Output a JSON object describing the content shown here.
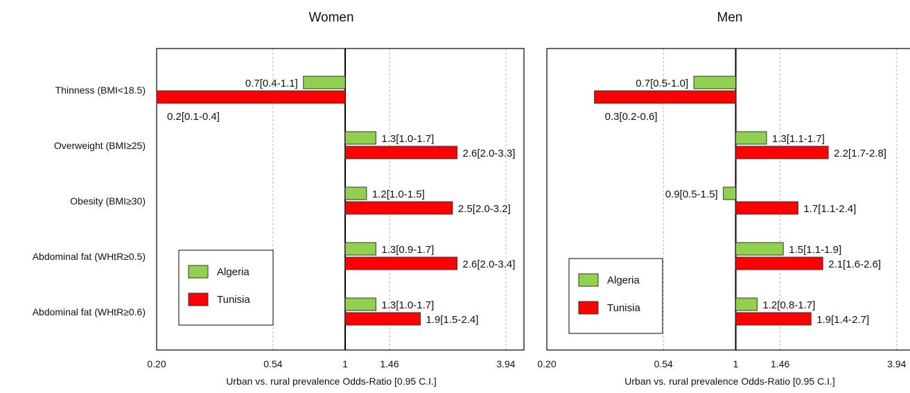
{
  "categories": [
    "Thinness (BMI<18.5)",
    "Overweight (BMI≥25)",
    "Obesity (BMI≥30)",
    "Abdominal fat (WHtR≥0.5)",
    "Abdominal fat (WHtR≥0.6)"
  ],
  "colors": {
    "Algeria": "#92d050",
    "Tunisia": "#ff0000"
  },
  "chart_data": [
    {
      "type": "bar",
      "orientation": "horizontal",
      "title": "Women",
      "xlabel": "Urban vs. rural prevalence Odds-Ratio [0.95 C.I.]",
      "xscale": "log",
      "xlim": [
        0.2,
        4.6
      ],
      "xticks": [
        "0.20",
        "0.54",
        "1",
        "1.46",
        "3.94"
      ],
      "reference_line": 1,
      "legend_position": "lower-left",
      "series": [
        {
          "name": "Algeria",
          "values": [
            0.7,
            1.3,
            1.2,
            1.3,
            1.3
          ],
          "labels": [
            "0.7[0.4-1.1]",
            "1.3[1.0-1.7]",
            "1.2[1.0-1.5]",
            "1.3[0.9-1.7]",
            "1.3[1.0-1.7]"
          ]
        },
        {
          "name": "Tunisia",
          "values": [
            0.2,
            2.6,
            2.5,
            2.6,
            1.9
          ],
          "labels": [
            "0.2[0.1-0.4]",
            "2.6[2.0-3.3]",
            "2.5[2.0-3.2]",
            "2.6[2.0-3.4]",
            "1.9[1.5-2.4]"
          ]
        }
      ]
    },
    {
      "type": "bar",
      "orientation": "horizontal",
      "title": "Men",
      "xlabel": "Urban vs. rural prevalence Odds-Ratio [0.95 C.I.]",
      "xscale": "log",
      "xlim": [
        0.2,
        4.6
      ],
      "xticks": [
        "0.20",
        "0.54",
        "1",
        "1.46",
        "3.94"
      ],
      "reference_line": 1,
      "legend_position": "lower-left",
      "series": [
        {
          "name": "Algeria",
          "values": [
            0.7,
            1.3,
            0.9,
            1.5,
            1.2
          ],
          "labels": [
            "0.7[0.5-1.0]",
            "1.3[1.1-1.7]",
            "0.9[0.5-1.5]",
            "1.5[1.1-1.9]",
            "1.2[0.8-1.7]"
          ]
        },
        {
          "name": "Tunisia",
          "values": [
            0.3,
            2.2,
            1.7,
            2.1,
            1.9
          ],
          "labels": [
            "0.3[0.2-0.6]",
            "2.2[1.7-2.8]",
            "1.7[1.1-2.4]",
            "2.1[1.6-2.6]",
            "1.9[1.4-2.7]"
          ]
        }
      ]
    }
  ]
}
